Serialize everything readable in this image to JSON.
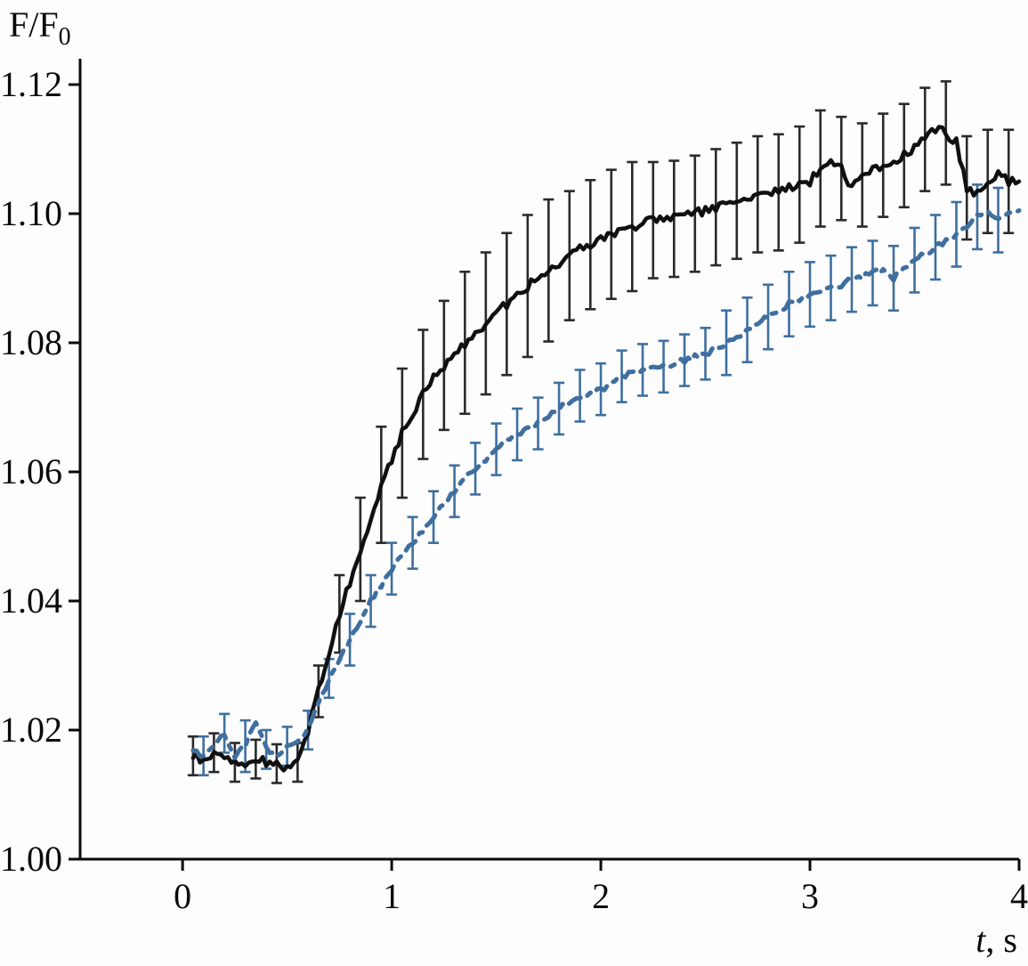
{
  "labels": {
    "ylabel_base": "F/F",
    "ylabel_sub": "0",
    "xlabel_var": "t",
    "xlabel_unit": ", s"
  },
  "chart_data": {
    "type": "line",
    "title": "",
    "xlabel": "t, s",
    "ylabel": "F/F0",
    "x_range": [
      -0.49,
      4.0
    ],
    "y_range": [
      1.0,
      1.124
    ],
    "grid": false,
    "legend": "none",
    "x_ticks": {
      "values": [
        0,
        1,
        2,
        3,
        4
      ],
      "labels": [
        "0",
        "1",
        "2",
        "3",
        "4"
      ]
    },
    "y_ticks": {
      "values": [
        1.0,
        1.02,
        1.04,
        1.06,
        1.08,
        1.1,
        1.12
      ],
      "labels": [
        "1.00",
        "1.02",
        "1.04",
        "1.06",
        "1.08",
        "1.10",
        "1.12"
      ]
    },
    "series": [
      {
        "name": "solid-black",
        "color": "#101010",
        "error_color": "#2a2a2a",
        "dash": "none",
        "width": 4.5,
        "noise": 0.0007,
        "points": [
          [
            0.05,
            1.016
          ],
          [
            0.1,
            1.015
          ],
          [
            0.15,
            1.0165
          ],
          [
            0.2,
            1.016
          ],
          [
            0.25,
            1.015
          ],
          [
            0.3,
            1.0148
          ],
          [
            0.35,
            1.0155
          ],
          [
            0.4,
            1.015
          ],
          [
            0.45,
            1.0148
          ],
          [
            0.5,
            1.014
          ],
          [
            0.55,
            1.015
          ],
          [
            0.6,
            1.02
          ],
          [
            0.65,
            1.026
          ],
          [
            0.7,
            1.032
          ],
          [
            0.75,
            1.038
          ],
          [
            0.8,
            1.043
          ],
          [
            0.85,
            1.048
          ],
          [
            0.9,
            1.053
          ],
          [
            0.95,
            1.058
          ],
          [
            1.0,
            1.062
          ],
          [
            1.05,
            1.066
          ],
          [
            1.1,
            1.069
          ],
          [
            1.15,
            1.072
          ],
          [
            1.2,
            1.0745
          ],
          [
            1.25,
            1.0765
          ],
          [
            1.3,
            1.0785
          ],
          [
            1.35,
            1.08
          ],
          [
            1.4,
            1.0815
          ],
          [
            1.45,
            1.083
          ],
          [
            1.5,
            1.0845
          ],
          [
            1.55,
            1.086
          ],
          [
            1.6,
            1.0875
          ],
          [
            1.65,
            1.0888
          ],
          [
            1.7,
            1.09
          ],
          [
            1.75,
            1.0912
          ],
          [
            1.8,
            1.0924
          ],
          [
            1.85,
            1.0935
          ],
          [
            1.9,
            1.0945
          ],
          [
            1.95,
            1.0952
          ],
          [
            2.0,
            1.096
          ],
          [
            2.05,
            1.0968
          ],
          [
            2.1,
            1.0975
          ],
          [
            2.15,
            1.098
          ],
          [
            2.2,
            1.0985
          ],
          [
            2.25,
            1.099
          ],
          [
            2.3,
            1.0995
          ],
          [
            2.35,
            1.0992
          ],
          [
            2.4,
            1.0996
          ],
          [
            2.45,
            1.1
          ],
          [
            2.5,
            1.1005
          ],
          [
            2.55,
            1.101
          ],
          [
            2.6,
            1.1015
          ],
          [
            2.65,
            1.102
          ],
          [
            2.7,
            1.1025
          ],
          [
            2.75,
            1.103
          ],
          [
            2.8,
            1.1035
          ],
          [
            2.85,
            1.1033
          ],
          [
            2.9,
            1.104
          ],
          [
            2.95,
            1.1045
          ],
          [
            3.0,
            1.105
          ],
          [
            3.05,
            1.107
          ],
          [
            3.1,
            1.108
          ],
          [
            3.15,
            1.107
          ],
          [
            3.2,
            1.104
          ],
          [
            3.25,
            1.106
          ],
          [
            3.3,
            1.107
          ],
          [
            3.35,
            1.1075
          ],
          [
            3.4,
            1.108
          ],
          [
            3.45,
            1.109
          ],
          [
            3.5,
            1.11
          ],
          [
            3.55,
            1.1115
          ],
          [
            3.6,
            1.113
          ],
          [
            3.65,
            1.1125
          ],
          [
            3.7,
            1.111
          ],
          [
            3.75,
            1.104
          ],
          [
            3.8,
            1.103
          ],
          [
            3.85,
            1.105
          ],
          [
            3.9,
            1.106
          ],
          [
            3.95,
            1.105
          ],
          [
            4.0,
            1.105
          ]
        ],
        "error_bars": [
          [
            0.05,
            0.003
          ],
          [
            0.15,
            0.003
          ],
          [
            0.25,
            0.003
          ],
          [
            0.35,
            0.003
          ],
          [
            0.45,
            0.003
          ],
          [
            0.55,
            0.003
          ],
          [
            0.65,
            0.004
          ],
          [
            0.75,
            0.006
          ],
          [
            0.85,
            0.008
          ],
          [
            0.95,
            0.009
          ],
          [
            1.05,
            0.01
          ],
          [
            1.15,
            0.01
          ],
          [
            1.25,
            0.01
          ],
          [
            1.35,
            0.011
          ],
          [
            1.45,
            0.011
          ],
          [
            1.55,
            0.011
          ],
          [
            1.65,
            0.011
          ],
          [
            1.75,
            0.011
          ],
          [
            1.85,
            0.01
          ],
          [
            1.95,
            0.01
          ],
          [
            2.05,
            0.01
          ],
          [
            2.15,
            0.01
          ],
          [
            2.25,
            0.009
          ],
          [
            2.35,
            0.009
          ],
          [
            2.45,
            0.009
          ],
          [
            2.55,
            0.009
          ],
          [
            2.65,
            0.009
          ],
          [
            2.75,
            0.009
          ],
          [
            2.85,
            0.009
          ],
          [
            2.95,
            0.009
          ],
          [
            3.05,
            0.009
          ],
          [
            3.15,
            0.008
          ],
          [
            3.25,
            0.008
          ],
          [
            3.35,
            0.008
          ],
          [
            3.45,
            0.008
          ],
          [
            3.55,
            0.008
          ],
          [
            3.65,
            0.008
          ],
          [
            3.75,
            0.008
          ],
          [
            3.85,
            0.008
          ],
          [
            3.95,
            0.008
          ]
        ]
      },
      {
        "name": "dashed-blue",
        "color": "#3f6f9f",
        "error_color": "#3f6f9f",
        "dash": "15 9 5 9",
        "width": 5,
        "noise": 0.0004,
        "points": [
          [
            0.05,
            1.017
          ],
          [
            0.1,
            1.016
          ],
          [
            0.15,
            1.018
          ],
          [
            0.2,
            1.0195
          ],
          [
            0.25,
            1.016
          ],
          [
            0.3,
            1.0175
          ],
          [
            0.35,
            1.0215
          ],
          [
            0.4,
            1.017
          ],
          [
            0.45,
            1.016
          ],
          [
            0.5,
            1.0175
          ],
          [
            0.55,
            1.018
          ],
          [
            0.6,
            1.02
          ],
          [
            0.65,
            1.024
          ],
          [
            0.7,
            1.028
          ],
          [
            0.75,
            1.031
          ],
          [
            0.8,
            1.034
          ],
          [
            0.85,
            1.037
          ],
          [
            0.9,
            1.04
          ],
          [
            0.95,
            1.0425
          ],
          [
            1.0,
            1.045
          ],
          [
            1.05,
            1.047
          ],
          [
            1.1,
            1.049
          ],
          [
            1.15,
            1.051
          ],
          [
            1.2,
            1.053
          ],
          [
            1.25,
            1.055
          ],
          [
            1.3,
            1.057
          ],
          [
            1.35,
            1.059
          ],
          [
            1.4,
            1.0605
          ],
          [
            1.45,
            1.062
          ],
          [
            1.5,
            1.0635
          ],
          [
            1.55,
            1.0648
          ],
          [
            1.6,
            1.0658
          ],
          [
            1.65,
            1.0665
          ],
          [
            1.7,
            1.0675
          ],
          [
            1.75,
            1.0688
          ],
          [
            1.8,
            1.0698
          ],
          [
            1.85,
            1.0708
          ],
          [
            1.9,
            1.0718
          ],
          [
            1.95,
            1.0723
          ],
          [
            2.0,
            1.0728
          ],
          [
            2.05,
            1.0735
          ],
          [
            2.1,
            1.0748
          ],
          [
            2.15,
            1.0753
          ],
          [
            2.2,
            1.0758
          ],
          [
            2.25,
            1.0765
          ],
          [
            2.3,
            1.0763
          ],
          [
            2.35,
            1.0768
          ],
          [
            2.4,
            1.0773
          ],
          [
            2.45,
            1.0778
          ],
          [
            2.5,
            1.0783
          ],
          [
            2.55,
            1.079
          ],
          [
            2.6,
            1.08
          ],
          [
            2.65,
            1.081
          ],
          [
            2.7,
            1.082
          ],
          [
            2.75,
            1.083
          ],
          [
            2.8,
            1.084
          ],
          [
            2.85,
            1.085
          ],
          [
            2.9,
            1.086
          ],
          [
            2.95,
            1.0868
          ],
          [
            3.0,
            1.0875
          ],
          [
            3.05,
            1.088
          ],
          [
            3.1,
            1.0885
          ],
          [
            3.15,
            1.089
          ],
          [
            3.2,
            1.0898
          ],
          [
            3.25,
            1.0903
          ],
          [
            3.3,
            1.0908
          ],
          [
            3.35,
            1.0913
          ],
          [
            3.4,
            1.09
          ],
          [
            3.45,
            1.0918
          ],
          [
            3.5,
            1.0928
          ],
          [
            3.55,
            1.0938
          ],
          [
            3.6,
            1.0948
          ],
          [
            3.65,
            1.0958
          ],
          [
            3.7,
            1.0968
          ],
          [
            3.75,
            1.098
          ],
          [
            3.8,
            1.0995
          ],
          [
            3.85,
            1.1
          ],
          [
            3.9,
            1.099
          ],
          [
            3.95,
            1.1
          ],
          [
            4.0,
            1.1005
          ]
        ],
        "error_bars": [
          [
            0.1,
            0.003
          ],
          [
            0.2,
            0.003
          ],
          [
            0.3,
            0.004
          ],
          [
            0.4,
            0.003
          ],
          [
            0.5,
            0.003
          ],
          [
            0.6,
            0.003
          ],
          [
            0.7,
            0.003
          ],
          [
            0.8,
            0.004
          ],
          [
            0.9,
            0.004
          ],
          [
            1.0,
            0.004
          ],
          [
            1.1,
            0.004
          ],
          [
            1.2,
            0.004
          ],
          [
            1.3,
            0.004
          ],
          [
            1.4,
            0.004
          ],
          [
            1.5,
            0.004
          ],
          [
            1.6,
            0.004
          ],
          [
            1.7,
            0.004
          ],
          [
            1.8,
            0.004
          ],
          [
            1.9,
            0.004
          ],
          [
            2.0,
            0.004
          ],
          [
            2.1,
            0.004
          ],
          [
            2.2,
            0.004
          ],
          [
            2.3,
            0.004
          ],
          [
            2.4,
            0.004
          ],
          [
            2.5,
            0.004
          ],
          [
            2.6,
            0.005
          ],
          [
            2.7,
            0.005
          ],
          [
            2.8,
            0.005
          ],
          [
            2.9,
            0.005
          ],
          [
            3.0,
            0.005
          ],
          [
            3.1,
            0.005
          ],
          [
            3.2,
            0.005
          ],
          [
            3.3,
            0.005
          ],
          [
            3.4,
            0.005
          ],
          [
            3.5,
            0.005
          ],
          [
            3.6,
            0.005
          ],
          [
            3.7,
            0.005
          ],
          [
            3.8,
            0.005
          ],
          [
            3.9,
            0.005
          ]
        ]
      }
    ]
  }
}
